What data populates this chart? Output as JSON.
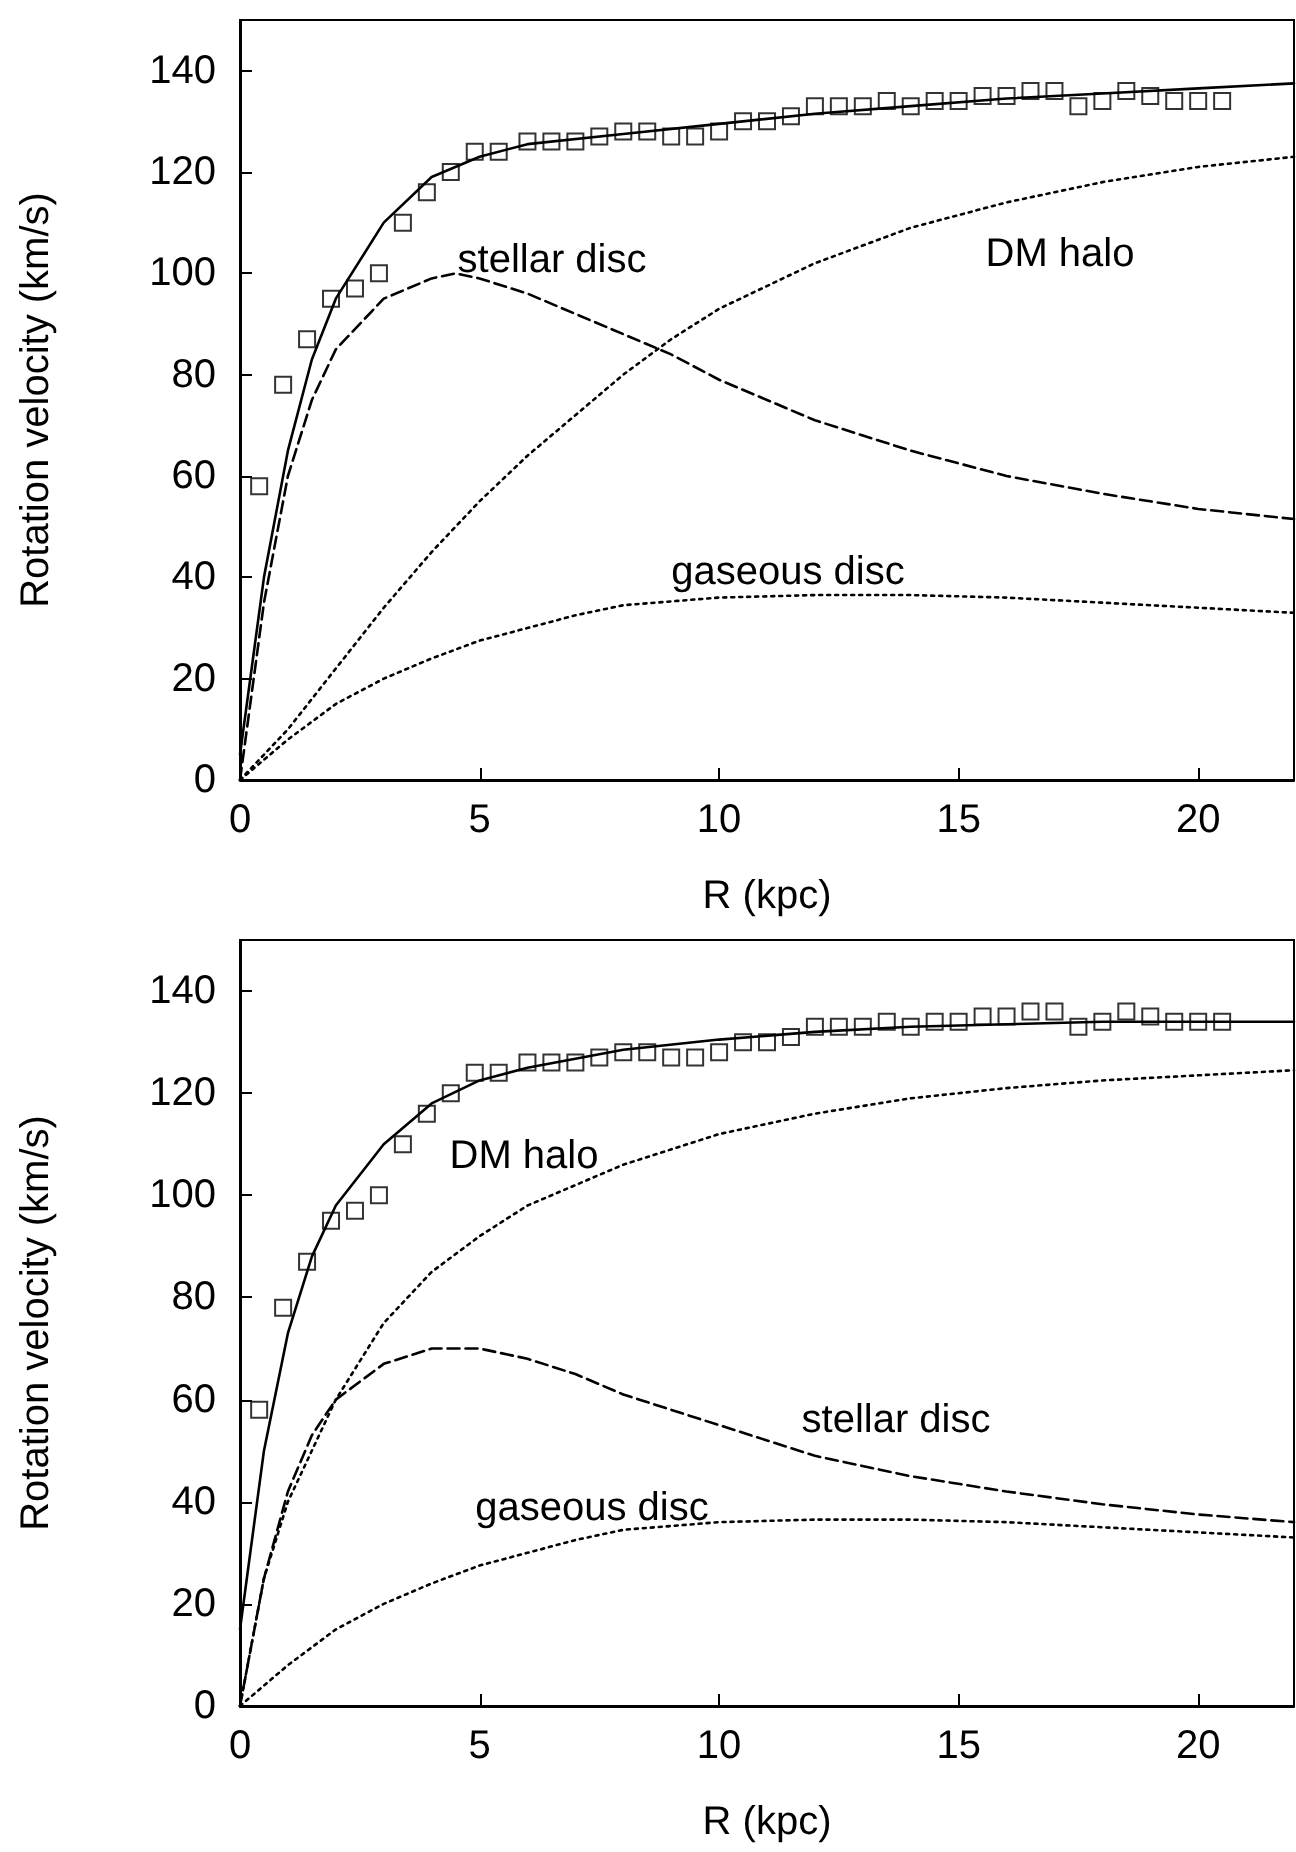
{
  "chart_data": [
    {
      "type": "line",
      "xlabel": "R (kpc)",
      "ylabel": "Rotation velocity (km/s)",
      "xlim": [
        0,
        22
      ],
      "xticks": [
        0,
        5,
        10,
        15,
        20
      ],
      "ylim": [
        0,
        150
      ],
      "yticks": [
        0,
        20,
        40,
        60,
        80,
        100,
        120,
        140
      ],
      "grid": false,
      "annotations": [
        "stellar disc",
        "DM halo",
        "gaseous disc"
      ],
      "series": [
        {
          "type": "scatter",
          "marker": "square",
          "color": "#000000",
          "x": [
            0.4,
            0.9,
            1.4,
            1.9,
            2.4,
            2.9,
            3.4,
            3.9,
            4.4,
            4.9,
            5.4,
            6,
            6.5,
            7,
            7.5,
            8,
            8.5,
            9,
            9.5,
            10,
            10.5,
            11,
            11.5,
            12,
            12.5,
            13,
            13.5,
            14,
            14.5,
            15,
            15.5,
            16,
            16.5,
            17,
            17.5,
            18,
            18.5,
            19,
            19.5,
            20,
            20.5
          ],
          "values": [
            58,
            78,
            87,
            95,
            97,
            100,
            110,
            116,
            120,
            124,
            124,
            126,
            126,
            126,
            127,
            128,
            128,
            127,
            127,
            128,
            130,
            130,
            131,
            133,
            133,
            133,
            134,
            133,
            134,
            134,
            135,
            135,
            136,
            136,
            133,
            134,
            136,
            135,
            134,
            134,
            134
          ]
        },
        {
          "marker": "none",
          "line_style": "solid",
          "color": "#000000",
          "x": [
            0,
            0.5,
            1,
            1.5,
            2,
            3,
            4,
            5,
            6,
            8,
            10,
            12,
            14,
            16,
            18,
            20,
            22
          ],
          "values": [
            5,
            40,
            65,
            83,
            95,
            110,
            119,
            123,
            125.5,
            127.5,
            129.5,
            131.5,
            133,
            134.5,
            135.5,
            136.5,
            137.5
          ]
        },
        {
          "marker": "none",
          "line_style": "dashed",
          "color": "#000000",
          "x": [
            0,
            0.5,
            1,
            1.5,
            2,
            3,
            4,
            4.5,
            5,
            6,
            7,
            8,
            9,
            10,
            12,
            14,
            16,
            18,
            20,
            22
          ],
          "values": [
            0,
            35,
            60,
            75,
            85,
            95,
            99,
            100,
            99,
            96,
            92,
            88,
            84,
            79,
            71,
            65,
            60,
            56.5,
            53.5,
            51.5
          ]
        },
        {
          "marker": "none",
          "line_style": "dotted",
          "color": "#000000",
          "x": [
            0,
            1,
            2,
            3,
            4,
            5,
            6,
            7,
            8,
            9,
            10,
            12,
            14,
            16,
            18,
            20,
            22
          ],
          "values": [
            0,
            10,
            22,
            34,
            45,
            55,
            64,
            72,
            80,
            87,
            93,
            102,
            109,
            114,
            118,
            121,
            123
          ]
        },
        {
          "marker": "none",
          "line_style": "dotted",
          "color": "#000000",
          "x": [
            0,
            1,
            2,
            3,
            4,
            5,
            6,
            7,
            8,
            10,
            12,
            14,
            16,
            18,
            20,
            22
          ],
          "values": [
            0,
            8,
            15,
            20,
            24,
            27.5,
            30,
            32.5,
            34.5,
            36,
            36.5,
            36.5,
            36,
            35,
            34,
            33
          ]
        }
      ]
    },
    {
      "type": "line",
      "xlabel": "R (kpc)",
      "ylabel": "Rotation velocity (km/s)",
      "xlim": [
        0,
        22
      ],
      "xticks": [
        0,
        5,
        10,
        15,
        20
      ],
      "ylim": [
        0,
        150
      ],
      "yticks": [
        0,
        20,
        40,
        60,
        80,
        100,
        120,
        140
      ],
      "grid": false,
      "annotations": [
        "DM halo",
        "stellar disc",
        "gaseous disc"
      ],
      "series": [
        {
          "type": "scatter",
          "marker": "square",
          "color": "#000000",
          "x": [
            0.4,
            0.9,
            1.4,
            1.9,
            2.4,
            2.9,
            3.4,
            3.9,
            4.4,
            4.9,
            5.4,
            6,
            6.5,
            7,
            7.5,
            8,
            8.5,
            9,
            9.5,
            10,
            10.5,
            11,
            11.5,
            12,
            12.5,
            13,
            13.5,
            14,
            14.5,
            15,
            15.5,
            16,
            16.5,
            17,
            17.5,
            18,
            18.5,
            19,
            19.5,
            20,
            20.5
          ],
          "values": [
            58,
            78,
            87,
            95,
            97,
            100,
            110,
            116,
            120,
            124,
            124,
            126,
            126,
            126,
            127,
            128,
            128,
            127,
            127,
            128,
            130,
            130,
            131,
            133,
            133,
            133,
            134,
            133,
            134,
            134,
            135,
            135,
            136,
            136,
            133,
            134,
            136,
            135,
            134,
            134,
            134
          ]
        },
        {
          "marker": "none",
          "line_style": "solid",
          "color": "#000000",
          "x": [
            0,
            0.5,
            1,
            1.5,
            2,
            3,
            4,
            5,
            6,
            8,
            10,
            12,
            14,
            16,
            18,
            20,
            22
          ],
          "values": [
            15,
            50,
            73,
            88,
            98,
            110,
            118,
            122.5,
            125,
            128.5,
            130.5,
            132,
            133,
            133.5,
            134,
            134,
            134
          ]
        },
        {
          "marker": "none",
          "line_style": "dotted",
          "color": "#000000",
          "x": [
            0,
            0.5,
            1,
            2,
            3,
            4,
            5,
            6,
            8,
            10,
            12,
            14,
            16,
            18,
            20,
            22
          ],
          "values": [
            0,
            25,
            40,
            60,
            75,
            85,
            92,
            98,
            106,
            112,
            116,
            119,
            121,
            122.5,
            123.5,
            124.5
          ]
        },
        {
          "marker": "none",
          "line_style": "dashed",
          "color": "#000000",
          "x": [
            0,
            0.5,
            1,
            1.5,
            2,
            3,
            4,
            5,
            6,
            7,
            8,
            10,
            12,
            14,
            16,
            18,
            20,
            22
          ],
          "values": [
            0,
            25,
            42,
            53,
            60,
            67,
            70,
            70,
            68,
            65,
            61,
            55,
            49,
            45,
            42,
            39.5,
            37.5,
            36
          ]
        },
        {
          "marker": "none",
          "line_style": "dotted",
          "color": "#000000",
          "x": [
            0,
            1,
            2,
            3,
            4,
            5,
            6,
            7,
            8,
            10,
            12,
            14,
            16,
            18,
            20,
            22
          ],
          "values": [
            0,
            8,
            15,
            20,
            24,
            27.5,
            30,
            32.5,
            34.5,
            36,
            36.5,
            36.5,
            36,
            35,
            34,
            33
          ]
        }
      ]
    }
  ]
}
